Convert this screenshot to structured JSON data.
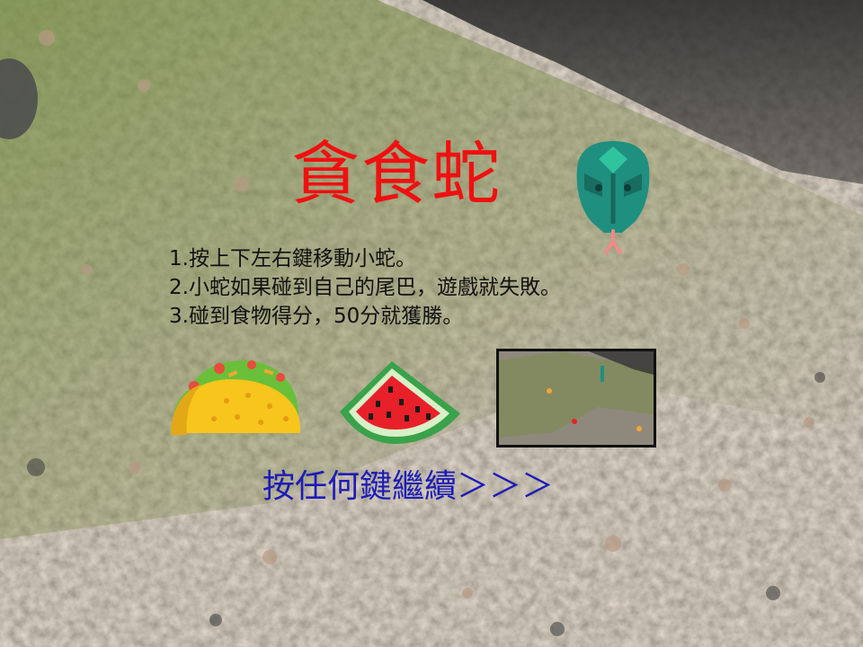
{
  "game": {
    "title": "貪食蛇",
    "rules": [
      "1.按上下左右鍵移動小蛇。",
      "2.小蛇如果碰到自己的尾巴，遊戲就失敗。",
      "3.碰到食物得分，50分就獲勝。"
    ],
    "continue_prompt": "按任何鍵繼續＞＞＞"
  },
  "icons": {
    "mascot": "snake-head-icon",
    "food_1": "taco-icon",
    "food_2": "watermelon-icon"
  },
  "colors": {
    "title": "#f01010",
    "prompt": "#1c1cb8",
    "rules_text": "#111111",
    "snake_green": "#1f8f7f"
  }
}
